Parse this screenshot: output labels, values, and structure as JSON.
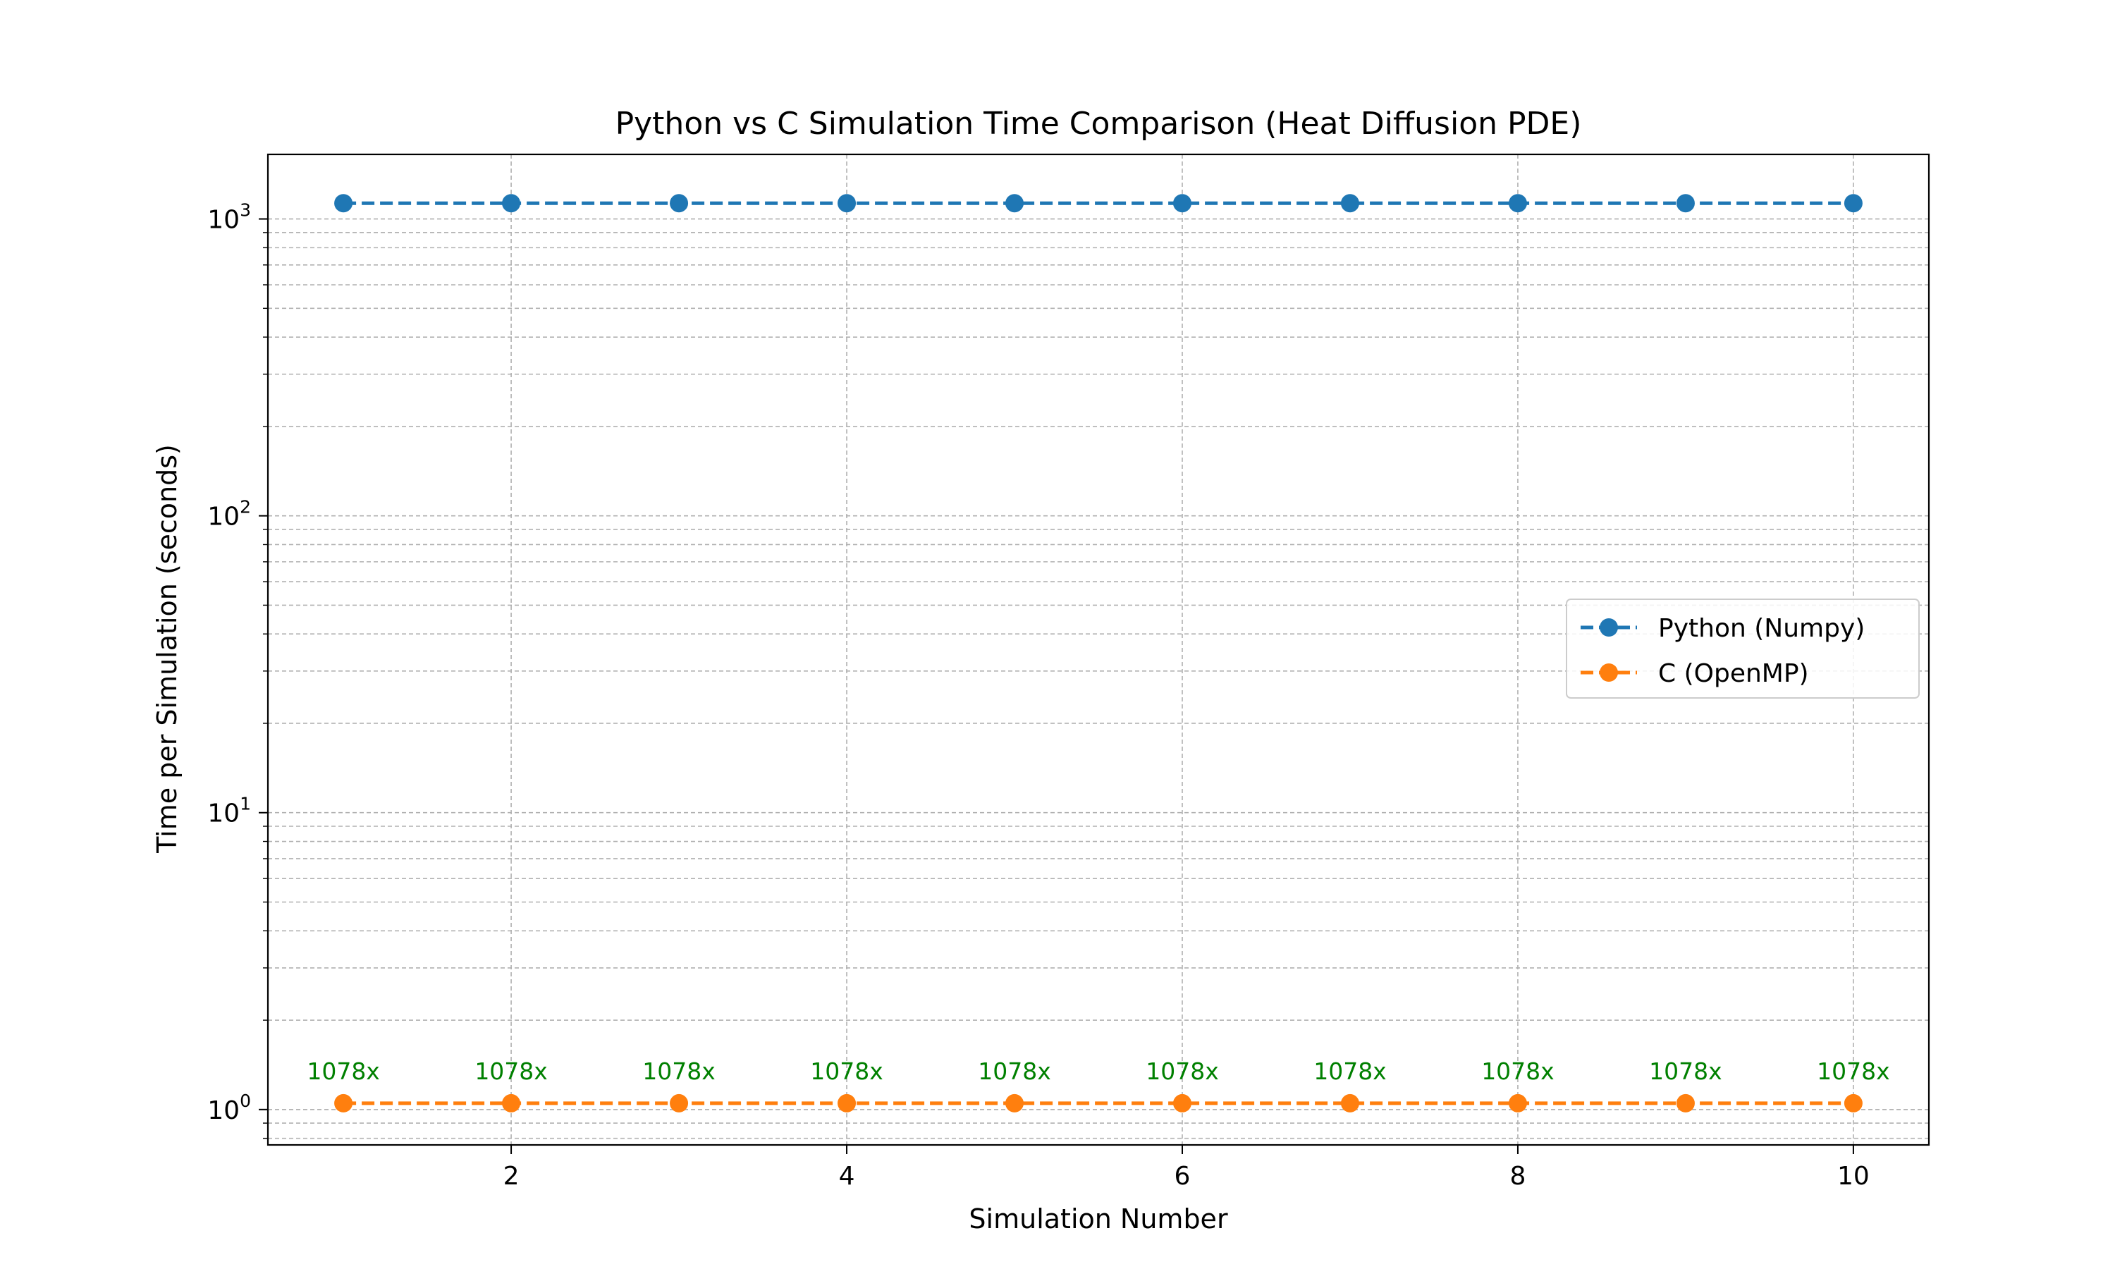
{
  "chart_data": {
    "type": "line",
    "title": "Python vs C Simulation Time Comparison (Heat Diffusion PDE)",
    "xlabel": "Simulation Number",
    "ylabel": "Time per Simulation (seconds)",
    "yscale": "log",
    "xlim": [
      0.55,
      10.45
    ],
    "ylim": [
      0.76,
      1650
    ],
    "grid": true,
    "legend_position": "center-right",
    "x": [
      1,
      2,
      3,
      4,
      5,
      6,
      7,
      8,
      9,
      10
    ],
    "x_ticks": [
      {
        "value": 2,
        "label": "2"
      },
      {
        "value": 4,
        "label": "4"
      },
      {
        "value": 6,
        "label": "6"
      },
      {
        "value": 8,
        "label": "8"
      },
      {
        "value": 10,
        "label": "10"
      }
    ],
    "y_ticks": [
      {
        "value": 1,
        "base": "10",
        "exp": "0"
      },
      {
        "value": 10,
        "base": "10",
        "exp": "1"
      },
      {
        "value": 100,
        "base": "10",
        "exp": "2"
      },
      {
        "value": 1000,
        "base": "10",
        "exp": "3"
      }
    ],
    "series": [
      {
        "name": "Python (Numpy)",
        "color": "#1f77b4",
        "values": [
          1130,
          1130,
          1130,
          1130,
          1130,
          1130,
          1130,
          1130,
          1130,
          1130
        ]
      },
      {
        "name": "C (OpenMP)",
        "color": "#ff7f0e",
        "values": [
          1.05,
          1.05,
          1.05,
          1.05,
          1.05,
          1.05,
          1.05,
          1.05,
          1.05,
          1.05
        ]
      }
    ],
    "annotations": {
      "color": "#008000",
      "labels": [
        "1078x",
        "1078x",
        "1078x",
        "1078x",
        "1078x",
        "1078x",
        "1078x",
        "1078x",
        "1078x",
        "1078x"
      ],
      "y_value": 1.35
    }
  }
}
